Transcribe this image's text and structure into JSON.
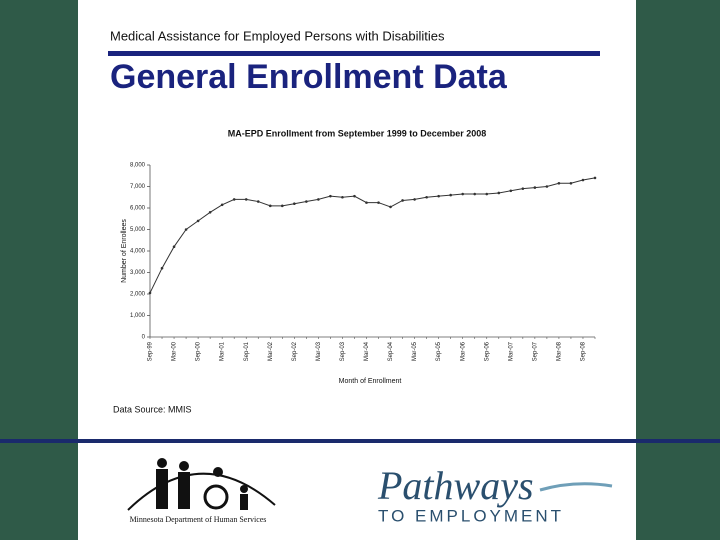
{
  "slide": {
    "subtitle": "Medical Assistance for Employed Persons with Disabilities",
    "title": "General Enrollment Data",
    "source": "Data Source: MMIS",
    "logo_left": "Minnesota Department of Human Services",
    "logo_right": "Pathways",
    "logo_right_sub": "TO EMPLOYMENT"
  },
  "chart_data": {
    "type": "line",
    "title": "MA-EPD Enrollment from September 1999 to December 2008",
    "x_label": "Month of Enrollment",
    "y_label": "Number of Enrollees",
    "categories": [
      "Sep-99",
      null,
      "Mar-00",
      null,
      "Sep-00",
      null,
      "Mar-01",
      null,
      "Sep-01",
      null,
      "Mar-02",
      null,
      "Sep-02",
      null,
      "Mar-03",
      null,
      "Sep-03",
      null,
      "Mar-04",
      null,
      "Sep-04",
      null,
      "Mar-05",
      null,
      "Sep-05",
      null,
      "Mar-06",
      null,
      "Sep-06",
      null,
      "Mar-07",
      null,
      "Sep-07",
      null,
      "Mar-08",
      null,
      "Sep-08",
      null
    ],
    "values": [
      2050,
      3200,
      4200,
      5000,
      5400,
      5800,
      6150,
      6400,
      6400,
      6300,
      6100,
      6100,
      6200,
      6300,
      6400,
      6550,
      6500,
      6550,
      6250,
      6250,
      6050,
      6350,
      6400,
      6500,
      6550,
      6600,
      6650,
      6650,
      6650,
      6700,
      6800,
      6900,
      6950,
      7000,
      7150,
      7150,
      7300,
      7400
    ],
    "color": "#333333",
    "ylim": [
      0,
      8000
    ],
    "yticks": [
      0,
      {
        "value": 1000,
        "label": "1,000"
      },
      {
        "value": 2000,
        "label": "2,000"
      },
      {
        "value": 3000,
        "label": "3,000"
      },
      {
        "value": 4000,
        "label": "4,000"
      },
      {
        "value": 5000,
        "label": "5,000"
      },
      {
        "value": 6000,
        "label": "6,000"
      },
      {
        "value": 7000,
        "label": "7,000"
      },
      {
        "value": 8000,
        "label": "8,000"
      }
    ],
    "grid": false
  }
}
